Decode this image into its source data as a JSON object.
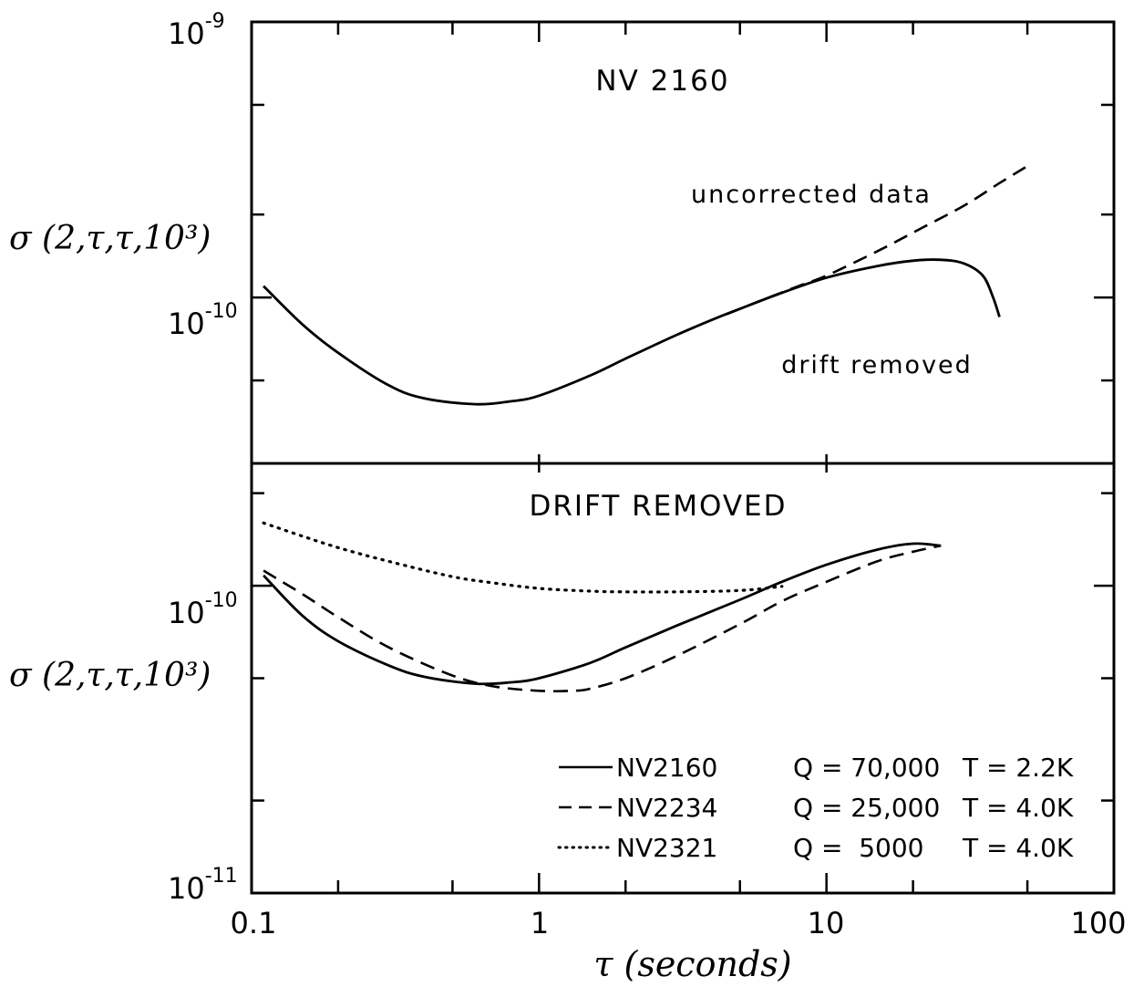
{
  "chart_data": [
    {
      "type": "line",
      "panel": "top",
      "title": "NV 2160",
      "ylabel": "σ (2,τ,τ,10³)",
      "xscale": "log",
      "yscale": "log",
      "xlim": [
        0.1,
        100
      ],
      "ylim": [
        2.5e-11,
        1e-09
      ],
      "yticks": [
        {
          "value": 1e-09,
          "base": "10",
          "exp": "-9"
        },
        {
          "value": 1e-10,
          "base": "10",
          "exp": "-10"
        }
      ],
      "series": [
        {
          "name": "drift removed",
          "style": "solid",
          "x": [
            0.11,
            0.15,
            0.2,
            0.3,
            0.4,
            0.6,
            0.8,
            1.0,
            1.5,
            2,
            3,
            4,
            5,
            7,
            10,
            15,
            20,
            25,
            30,
            35,
            38,
            40
          ],
          "y": [
            1.1e-10,
            8e-11,
            6.3e-11,
            4.8e-11,
            4.3e-11,
            4.1e-11,
            4.2e-11,
            4.4e-11,
            5.2e-11,
            6e-11,
            7.3e-11,
            8.3e-11,
            9.1e-11,
            1.04e-10,
            1.18e-10,
            1.3e-10,
            1.36e-10,
            1.37e-10,
            1.33e-10,
            1.2e-10,
            1e-10,
            8.5e-11
          ]
        },
        {
          "name": "uncorrected data",
          "style": "dashed",
          "x": [
            4.5,
            6,
            8,
            10,
            15,
            20,
            30,
            40,
            50
          ],
          "y": [
            8.7e-11,
            9.8e-11,
            1.1e-10,
            1.2e-10,
            1.47e-10,
            1.72e-10,
            2.15e-10,
            2.6e-10,
            3e-10
          ]
        }
      ],
      "annotations": [
        "uncorrected data",
        "drift removed"
      ]
    },
    {
      "type": "line",
      "panel": "bottom",
      "title": "DRIFT REMOVED",
      "ylabel": "σ (2,τ,τ,10³)",
      "xlabel": "τ (seconds)",
      "xscale": "log",
      "yscale": "log",
      "xlim": [
        0.1,
        100
      ],
      "ylim": [
        1e-11,
        2.5e-10
      ],
      "xticks": [
        {
          "value": 0.1,
          "label": "0.1"
        },
        {
          "value": 1,
          "label": "1"
        },
        {
          "value": 10,
          "label": "10"
        },
        {
          "value": 100,
          "label": "100"
        }
      ],
      "yticks": [
        {
          "value": 1e-10,
          "base": "10",
          "exp": "-10"
        },
        {
          "value": 1e-11,
          "base": "10",
          "exp": "-11"
        }
      ],
      "series": [
        {
          "name": "NV2160",
          "style": "solid",
          "x": [
            0.11,
            0.15,
            0.2,
            0.3,
            0.4,
            0.6,
            0.8,
            1.0,
            1.5,
            2,
            3,
            5,
            7,
            10,
            15,
            20,
            25
          ],
          "y": [
            1.08e-10,
            8e-11,
            6.6e-11,
            5.5e-11,
            5.05e-11,
            4.8e-11,
            4.85e-11,
            5e-11,
            5.6e-11,
            6.3e-11,
            7.4e-11,
            9e-11,
            1.03e-10,
            1.17e-10,
            1.31e-10,
            1.37e-10,
            1.35e-10
          ]
        },
        {
          "name": "NV2234",
          "style": "dashed",
          "x": [
            0.11,
            0.15,
            0.2,
            0.3,
            0.5,
            0.7,
            1.0,
            1.3,
            1.5,
            2,
            3,
            5,
            7,
            10,
            15,
            20,
            25
          ],
          "y": [
            1.12e-10,
            9.4e-11,
            7.9e-11,
            6.3e-11,
            5.1e-11,
            4.7e-11,
            4.55e-11,
            4.55e-11,
            4.62e-11,
            5e-11,
            5.9e-11,
            7.5e-11,
            8.9e-11,
            1.03e-10,
            1.2e-10,
            1.29e-10,
            1.35e-10
          ]
        },
        {
          "name": "NV2321",
          "style": "dotted",
          "x": [
            0.11,
            0.15,
            0.2,
            0.3,
            0.5,
            0.7,
            1.0,
            1.5,
            2,
            3,
            5,
            7
          ],
          "y": [
            1.6e-10,
            1.45e-10,
            1.33e-10,
            1.2e-10,
            1.07e-10,
            1.02e-10,
            9.8e-11,
            9.6e-11,
            9.55e-11,
            9.55e-11,
            9.65e-11,
            9.95e-11
          ]
        }
      ],
      "legend": [
        {
          "name": "NV2160",
          "style": "solid",
          "q": "Q = 70,000",
          "t": "T = 2.2K"
        },
        {
          "name": "NV2234",
          "style": "dashed",
          "q": "Q = 25,000",
          "t": "T = 4.0K"
        },
        {
          "name": "NV2321",
          "style": "dotted",
          "q": "Q =  5000",
          "t": "T = 4.0K"
        }
      ],
      "legend_position": "bottom-right"
    }
  ]
}
